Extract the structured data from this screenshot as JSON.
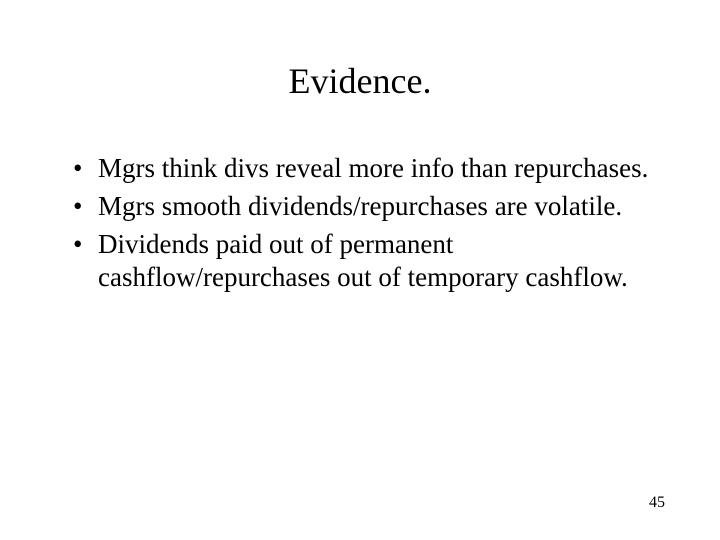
{
  "slide": {
    "title": "Evidence.",
    "bullets": [
      "Mgrs think divs reveal more info than repurchases.",
      "Mgrs smooth dividends/repurchases are volatile.",
      "Dividends paid out of permanent cashflow/repurchases out of temporary cashflow."
    ],
    "page_number": "45",
    "background_color": "#ffffff",
    "text_color": "#000000",
    "title_fontsize": 36,
    "body_fontsize": 27,
    "page_number_fontsize": 16,
    "font_family": "Times New Roman"
  }
}
